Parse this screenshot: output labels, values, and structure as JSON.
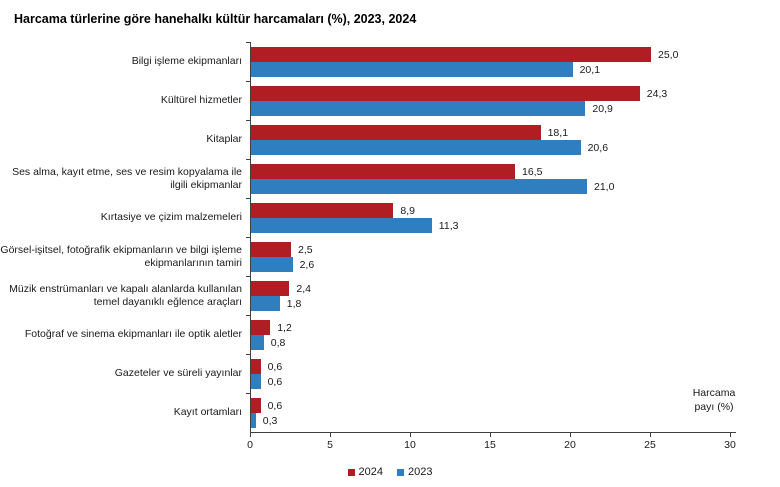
{
  "title": "Harcama türlerine göre hanehalkı kültür harcamaları (%), 2023, 2024",
  "chart_data": {
    "type": "bar",
    "orientation": "horizontal",
    "title": "Harcama türlerine göre hanehalkı kültür harcamaları (%), 2023, 2024",
    "xlabel": "Harcama payı (%)",
    "xlim": [
      0,
      30
    ],
    "x_ticks": [
      0,
      5,
      10,
      15,
      20,
      25,
      30
    ],
    "grid": false,
    "legend_position": "bottom",
    "categories": [
      "Bilgi işleme ekipmanları",
      "Kültürel hizmetler",
      "Kitaplar",
      "Ses alma, kayıt etme, ses ve resim kopyalama ile ilgili ekipmanlar",
      "Kırtasiye ve çizim malzemeleri",
      "Görsel-işitsel, fotoğrafik ekipmanların ve bilgi işleme ekipmanlarının tamiri",
      "Müzik enstrümanları ve kapalı alanlarda kullanılan temel dayanıklı eğlence araçları",
      "Fotoğraf ve sinema ekipmanları ile optik aletler",
      "Gazeteler ve süreli yayınlar",
      "Kayıt ortamları"
    ],
    "series": [
      {
        "name": "2024",
        "color": "#b01e24",
        "values": [
          25.0,
          24.3,
          18.1,
          16.5,
          8.9,
          2.5,
          2.4,
          1.2,
          0.6,
          0.6
        ],
        "labels": [
          "25,0",
          "24,3",
          "18,1",
          "16,5",
          "8,9",
          "2,5",
          "2,4",
          "1,2",
          "0,6",
          "0,6"
        ]
      },
      {
        "name": "2023",
        "color": "#2f7ec0",
        "values": [
          20.1,
          20.9,
          20.6,
          21.0,
          11.3,
          2.6,
          1.8,
          0.8,
          0.6,
          0.3
        ],
        "labels": [
          "20,1",
          "20,9",
          "20,6",
          "21,0",
          "11,3",
          "2,6",
          "1,8",
          "0,8",
          "0,6",
          "0,3"
        ]
      }
    ]
  }
}
